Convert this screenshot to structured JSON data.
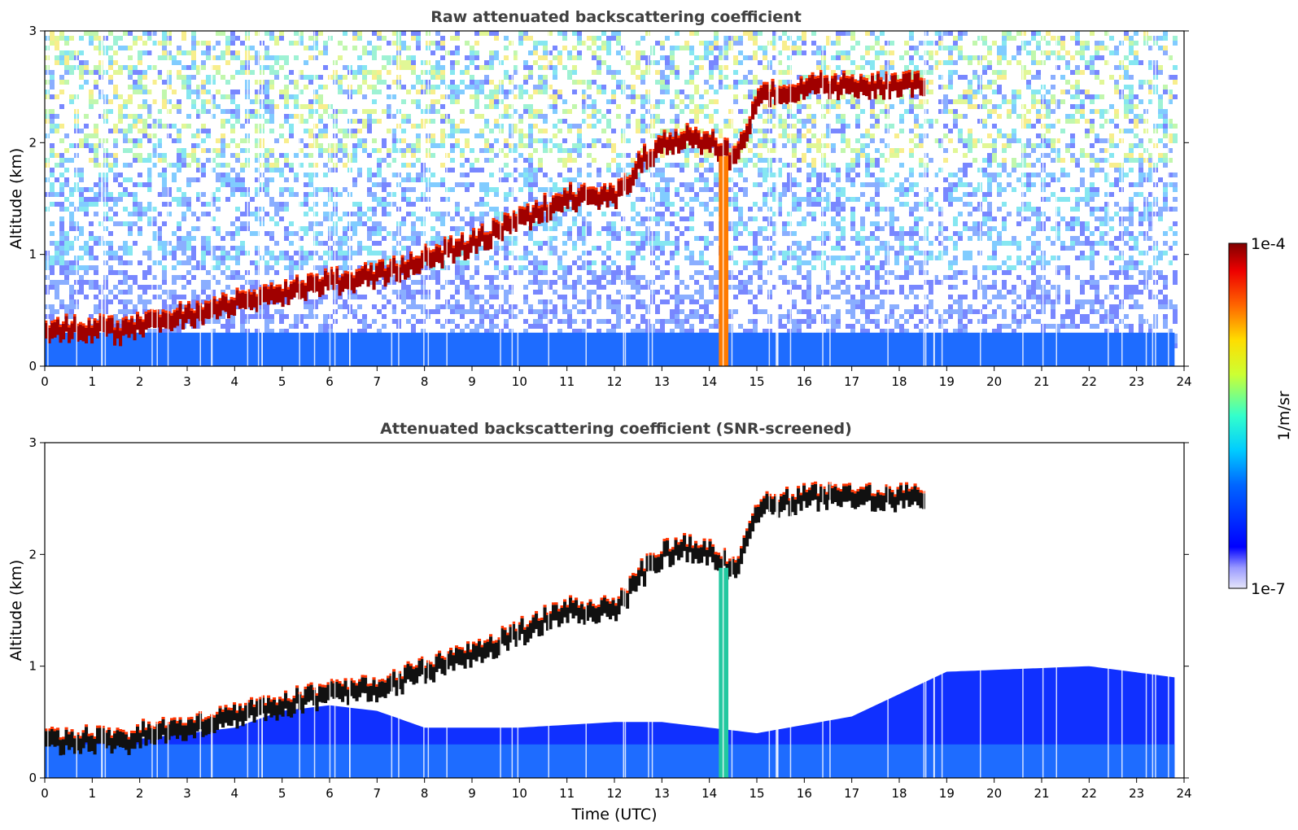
{
  "chart_data": [
    {
      "type": "heatmap",
      "title": "Raw attenuated backscattering coefficient",
      "xlabel": "",
      "ylabel": "Altitude (km)",
      "xlim": [
        0,
        24
      ],
      "ylim": [
        0,
        3
      ],
      "xticks": [
        "0",
        "1",
        "2",
        "3",
        "4",
        "5",
        "6",
        "7",
        "8",
        "9",
        "10",
        "11",
        "12",
        "13",
        "14",
        "15",
        "16",
        "17",
        "18",
        "19",
        "20",
        "21",
        "22",
        "23",
        "24"
      ],
      "yticks": [
        "0",
        "1",
        "2",
        "3"
      ],
      "data_extent_hours": [
        0,
        23.8
      ],
      "features": {
        "aerosol_layer_top_km": [
          [
            0,
            0.33
          ],
          [
            1,
            0.33
          ],
          [
            1.7,
            0.3
          ],
          [
            2,
            0.38
          ],
          [
            3,
            0.45
          ],
          [
            4,
            0.55
          ],
          [
            5,
            0.65
          ],
          [
            6,
            0.75
          ],
          [
            7,
            0.8
          ],
          [
            8,
            0.95
          ],
          [
            9,
            1.1
          ],
          [
            10,
            1.3
          ],
          [
            11,
            1.5
          ],
          [
            12,
            1.5
          ],
          [
            12.5,
            1.8
          ],
          [
            13,
            2.0
          ],
          [
            13.5,
            2.05
          ],
          [
            14,
            2.0
          ],
          [
            14.5,
            1.85
          ],
          [
            15,
            2.4
          ],
          [
            16,
            2.5
          ],
          [
            17,
            2.5
          ],
          [
            18,
            2.5
          ],
          [
            18.5,
            2.5
          ]
        ],
        "rain_column_hours": [
          14.2,
          14.4
        ]
      }
    },
    {
      "type": "heatmap",
      "title": "Attenuated backscattering coefficient (SNR-screened)",
      "xlabel": "Time (UTC)",
      "ylabel": "Altitude (km)",
      "xlim": [
        0,
        24
      ],
      "ylim": [
        0,
        3
      ],
      "xticks": [
        "0",
        "1",
        "2",
        "3",
        "4",
        "5",
        "6",
        "7",
        "8",
        "9",
        "10",
        "11",
        "12",
        "13",
        "14",
        "15",
        "16",
        "17",
        "18",
        "19",
        "20",
        "21",
        "22",
        "23",
        "24"
      ],
      "yticks": [
        "0",
        "1",
        "2",
        "3"
      ],
      "data_extent_hours": [
        0,
        23.8
      ],
      "features": {
        "aerosol_layer_top_km": [
          [
            0,
            0.33
          ],
          [
            1,
            0.33
          ],
          [
            1.7,
            0.3
          ],
          [
            2,
            0.38
          ],
          [
            3,
            0.45
          ],
          [
            4,
            0.55
          ],
          [
            5,
            0.65
          ],
          [
            6,
            0.75
          ],
          [
            7,
            0.8
          ],
          [
            8,
            0.95
          ],
          [
            9,
            1.1
          ],
          [
            10,
            1.3
          ],
          [
            11,
            1.5
          ],
          [
            12,
            1.5
          ],
          [
            12.5,
            1.8
          ],
          [
            13,
            2.0
          ],
          [
            13.5,
            2.05
          ],
          [
            14,
            2.0
          ],
          [
            14.5,
            1.85
          ],
          [
            15,
            2.4
          ],
          [
            16,
            2.5
          ],
          [
            17,
            2.5
          ],
          [
            18,
            2.5
          ],
          [
            18.5,
            2.5
          ]
        ],
        "boundary_layer_top_km": [
          [
            0,
            0.3
          ],
          [
            2,
            0.35
          ],
          [
            4,
            0.45
          ],
          [
            5,
            0.6
          ],
          [
            6,
            0.65
          ],
          [
            7,
            0.6
          ],
          [
            8,
            0.45
          ],
          [
            10,
            0.45
          ],
          [
            12,
            0.5
          ],
          [
            13,
            0.5
          ],
          [
            15,
            0.4
          ],
          [
            17,
            0.55
          ],
          [
            18,
            0.75
          ],
          [
            19,
            0.95
          ],
          [
            22,
            1.0
          ],
          [
            23.8,
            0.9
          ]
        ],
        "rain_column_hours": [
          14.2,
          14.4
        ]
      }
    }
  ],
  "colorbar": {
    "label": "1/m/sr",
    "max_label": "1e-4",
    "min_label": "1e-7",
    "scale": "log",
    "range": [
      1e-07,
      0.0001
    ],
    "colormap": "jet"
  }
}
